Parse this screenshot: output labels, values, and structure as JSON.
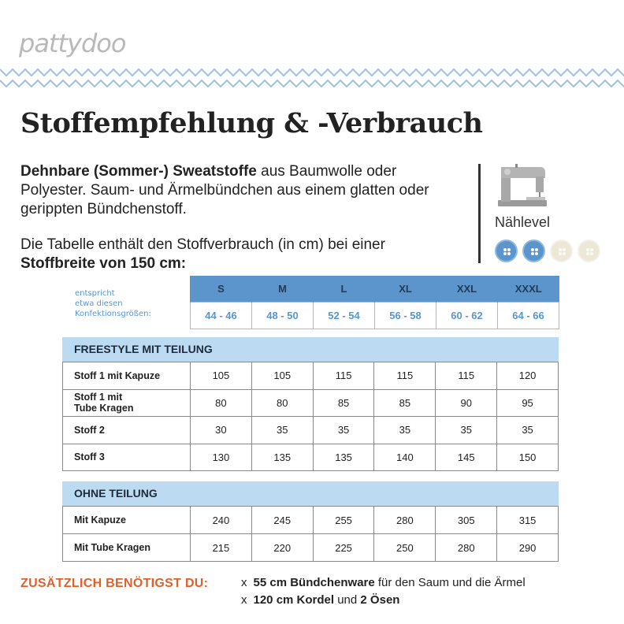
{
  "logo": "pattydoo",
  "title": "Stoffempfehlung & -Verbrauch",
  "intro": {
    "bold": "Dehnbare (Sommer-) Sweatstoffe",
    "rest": " aus Baumwolle oder Polyester. Saum- und Ärmelbündchen aus einem glatten oder gerippten Bündchenstoff."
  },
  "table_note": {
    "text": "Die Tabelle enthält den Stoffverbrauch (in cm) bei einer",
    "bold": "Stoffbreite von 150 cm:"
  },
  "sewing_level": {
    "label": "Nählevel",
    "icon": "sewing-machine-icon",
    "level": 2,
    "max": 4,
    "on_color": "#5b95cc",
    "off_color": "#ece8d8"
  },
  "size_note": {
    "line1": "entspricht",
    "line2": "etwa diesen",
    "line3": "Konfektionsgrößen:"
  },
  "sizes": [
    "S",
    "M",
    "L",
    "XL",
    "XXL",
    "XXXL"
  ],
  "konfektion": [
    "44 - 46",
    "48 - 50",
    "52 - 54",
    "56 - 58",
    "60 - 62",
    "64 - 66"
  ],
  "sections": [
    {
      "title": "FREESTYLE MIT TEILUNG",
      "rows": [
        {
          "label": "Stoff 1 mit Kapuze",
          "values": [
            "105",
            "105",
            "115",
            "115",
            "115",
            "120"
          ]
        },
        {
          "label": "Stoff 1 mit\nTube Kragen",
          "values": [
            "80",
            "80",
            "85",
            "85",
            "90",
            "95"
          ]
        },
        {
          "label": "Stoff 2",
          "values": [
            "30",
            "35",
            "35",
            "35",
            "35",
            "35"
          ]
        },
        {
          "label": "Stoff 3",
          "values": [
            "130",
            "135",
            "135",
            "140",
            "145",
            "150"
          ]
        }
      ]
    },
    {
      "title": "OHNE TEILUNG",
      "rows": [
        {
          "label": "Mit Kapuze",
          "values": [
            "240",
            "245",
            "255",
            "280",
            "305",
            "315"
          ]
        },
        {
          "label": "Mit Tube Kragen",
          "values": [
            "215",
            "220",
            "225",
            "250",
            "280",
            "290"
          ]
        }
      ]
    }
  ],
  "extra": {
    "heading": "ZUSÄTZLICH BENÖTIGST DU:",
    "marker": "x",
    "item1_bold": "55 cm Bündchenware",
    "item1_rest": " für den Saum und die Ärmel",
    "item2_bold1": "120 cm Kordel",
    "item2_mid": " und ",
    "item2_bold2": "2 Ösen"
  },
  "colors": {
    "accent_blue": "#5b95cc",
    "section_blue": "#bcdbf3",
    "orange": "#e0602a"
  }
}
